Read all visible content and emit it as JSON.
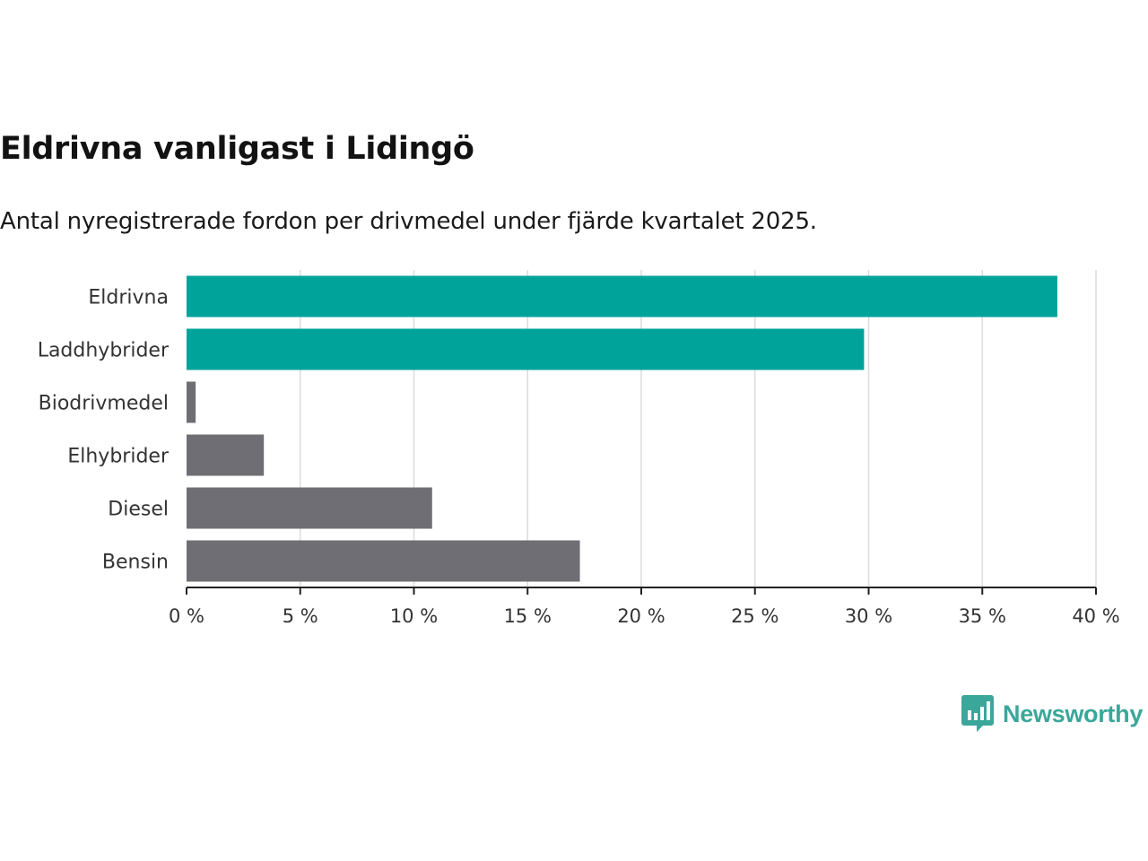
{
  "chart_data": {
    "type": "bar",
    "orientation": "horizontal",
    "title": "Eldrivna vanligast i Lidingö",
    "subtitle": "Antal nyregistrerade fordon per drivmedel under fjärde kvartalet 2025.",
    "categories": [
      "Eldrivna",
      "Laddhybrider",
      "Biodrivmedel",
      "Elhybrider",
      "Diesel",
      "Bensin"
    ],
    "values": [
      38.3,
      29.8,
      0.4,
      3.4,
      10.8,
      17.3
    ],
    "colors": [
      "#00a39a",
      "#00a39a",
      "#6f6e75",
      "#6f6e75",
      "#6f6e75",
      "#6f6e75"
    ],
    "xlim": [
      0,
      40
    ],
    "xticks": [
      0,
      5,
      10,
      15,
      20,
      25,
      30,
      35,
      40
    ],
    "tick_labels": [
      "0 %",
      "5 %",
      "10 %",
      "15 %",
      "20 %",
      "25 %",
      "30 %",
      "35 %",
      "40 %"
    ],
    "xlabel": "",
    "ylabel": "",
    "grid": true
  },
  "branding": {
    "name": "Newsworthy",
    "icon": "newsworthy-logo-icon",
    "color": "#3aa79a"
  }
}
